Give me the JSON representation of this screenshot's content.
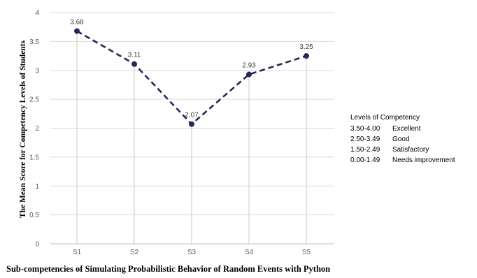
{
  "chart_data": {
    "type": "line",
    "categories": [
      "S1",
      "S2",
      "S3",
      "S4",
      "S5"
    ],
    "series": [
      {
        "values": [
          3.68,
          3.11,
          2.07,
          2.93,
          3.25
        ]
      }
    ],
    "data_labels": [
      "3.68",
      "3.11",
      "2.07",
      "2.93",
      "3.25"
    ],
    "y_ticks": [
      "0",
      "0.5",
      "1",
      "1.5",
      "2",
      "2.5",
      "3",
      "3.5",
      "4"
    ],
    "ylim": [
      0,
      4
    ],
    "ylabel": "The Mean Score for Competency Levels of Students",
    "xlabel": "Sub-competencies of Simulating Probabilistic Behavior of Random Events with Python",
    "grid": true,
    "line_style": "dashed",
    "line_color": "#1f2a56",
    "legend_position": "right",
    "legend": {
      "title": "Levels of Competency",
      "items": [
        {
          "range": "3.50-4.00",
          "label": "Excellent"
        },
        {
          "range": "2.50-3.49",
          "label": "Good"
        },
        {
          "range": "1.50-2.49",
          "label": "Satisfactory"
        },
        {
          "range": "0.00-1.49",
          "label": "Needs improvement"
        }
      ]
    }
  }
}
